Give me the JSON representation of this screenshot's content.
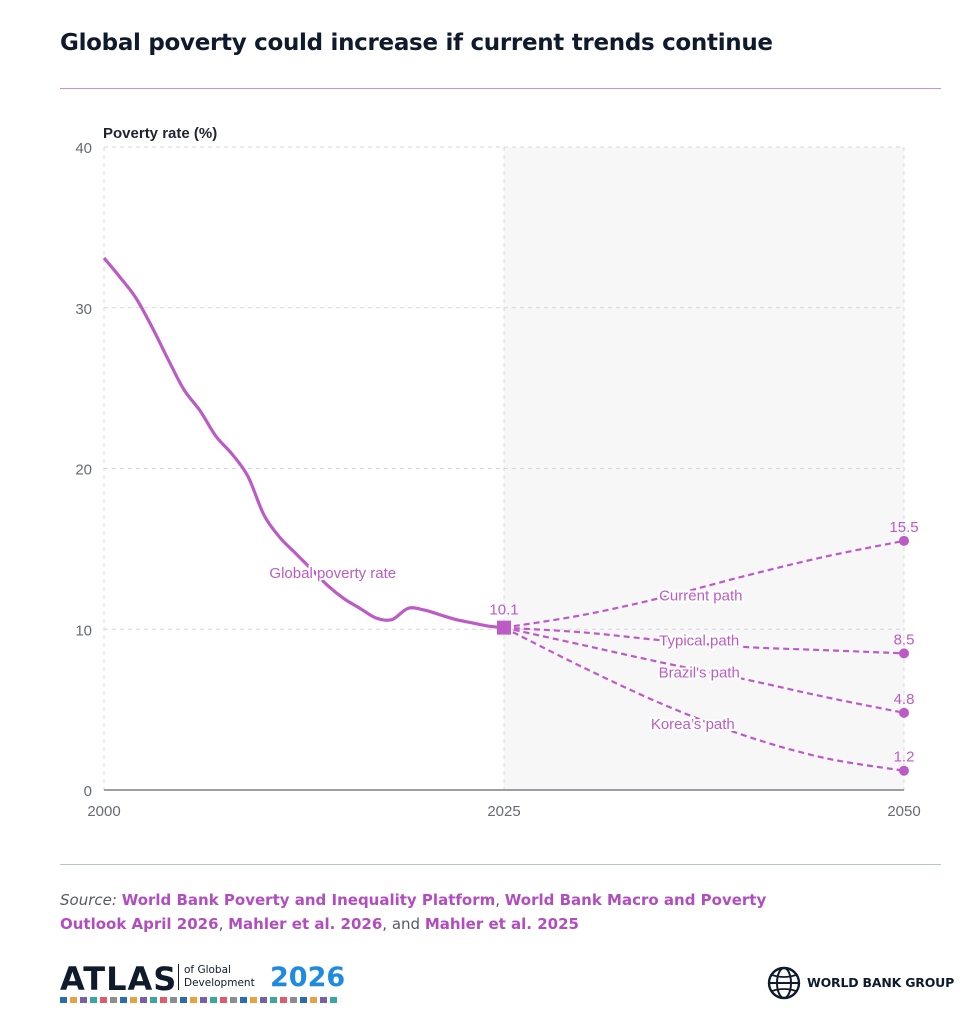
{
  "title": "Global poverty could increase if current trends continue",
  "source": {
    "label": "Source:",
    "links": [
      "World Bank Poverty and Inequality Platform",
      "World Bank Macro and Poverty Outlook April 2026",
      "Mahler et al. 2026",
      "Mahler et al. 2025"
    ],
    "sep1": ", ",
    "sep2": ", ",
    "sep3": ", and "
  },
  "footer": {
    "atlas_word": "ATLAS",
    "atlas_sub_line1": "of Global",
    "atlas_sub_line2": "Development",
    "atlas_year": "2026",
    "wbg_text": "WORLD BANK GROUP"
  },
  "colors": {
    "accent": "#bd5bc6",
    "projection_shade": "#f7f7f8",
    "grid": "#d3d8de",
    "axis_text": "#666b73",
    "atlas_year": "#1f8be0"
  },
  "chart_data": {
    "type": "line",
    "ylabel": "Poverty rate (%)",
    "xlabel": "",
    "xlim": [
      2000,
      2050
    ],
    "ylim": [
      0,
      40
    ],
    "xticks": [
      2000,
      2025,
      2050
    ],
    "yticks": [
      0,
      10,
      20,
      30,
      40
    ],
    "grid": true,
    "shaded_region": {
      "from": 2025,
      "to": 2050,
      "meaning": "projection"
    },
    "historical": {
      "name": "Global poverty rate",
      "x": [
        2000,
        2001,
        2002,
        2003,
        2004,
        2005,
        2006,
        2007,
        2008,
        2009,
        2010,
        2011,
        2012,
        2013,
        2014,
        2015,
        2016,
        2017,
        2018,
        2019,
        2020,
        2021,
        2022,
        2023,
        2024,
        2025
      ],
      "y": [
        33.1,
        31.9,
        30.6,
        28.8,
        26.8,
        24.9,
        23.6,
        22.0,
        20.9,
        19.5,
        17.1,
        15.7,
        14.7,
        13.7,
        12.7,
        11.9,
        11.3,
        10.7,
        10.6,
        11.3,
        11.2,
        10.9,
        10.6,
        10.4,
        10.2,
        10.1
      ],
      "endpoint_label": "10.1"
    },
    "series": [
      {
        "name": "Current path",
        "x": [
          2025,
          2030,
          2035,
          2040,
          2045,
          2050
        ],
        "y": [
          10.1,
          10.9,
          12.0,
          13.3,
          14.5,
          15.5
        ],
        "end_label": "15.5"
      },
      {
        "name": "Typical path",
        "x": [
          2025,
          2030,
          2035,
          2040,
          2045,
          2050
        ],
        "y": [
          10.1,
          9.8,
          9.3,
          8.9,
          8.7,
          8.5
        ],
        "end_label": "8.5"
      },
      {
        "name": "Brazil's path",
        "x": [
          2025,
          2030,
          2035,
          2040,
          2045,
          2050
        ],
        "y": [
          10.1,
          9.0,
          7.9,
          6.9,
          5.8,
          4.8
        ],
        "end_label": "4.8"
      },
      {
        "name": "Korea’s path",
        "x": [
          2025,
          2030,
          2035,
          2040,
          2045,
          2050
        ],
        "y": [
          10.1,
          7.6,
          5.3,
          3.4,
          2.0,
          1.2
        ],
        "end_label": "1.2"
      }
    ]
  }
}
